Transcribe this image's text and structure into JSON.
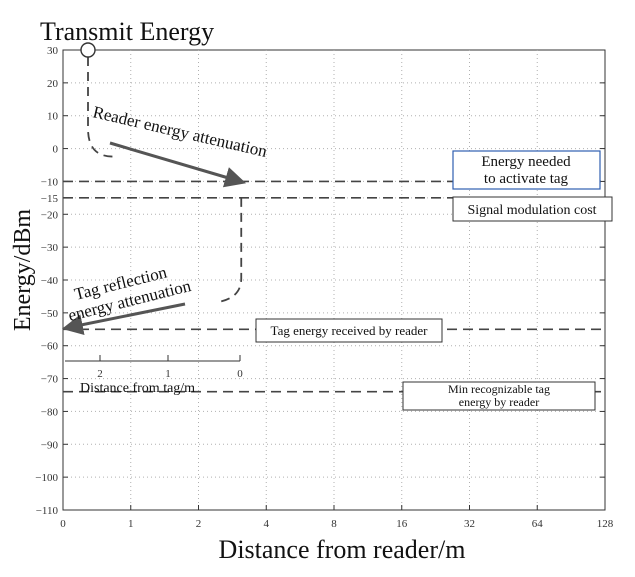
{
  "chart_data": {
    "type": "line",
    "title": "Transmit Energy",
    "xlabel": "Distance from reader/m",
    "ylabel": "Energy/dBm",
    "x_scale": "log2",
    "x_ticks": [
      "0",
      "1",
      "2",
      "4",
      "8",
      "16",
      "32",
      "64",
      "128"
    ],
    "y_ticks": [
      30,
      20,
      10,
      0,
      -10,
      -15,
      -20,
      -30,
      -40,
      -50,
      -60,
      -70,
      -80,
      -90,
      -100,
      -110
    ],
    "ylim": [
      -110,
      30
    ],
    "grid": true,
    "inset_axis": {
      "label": "Distance from tag/m",
      "ticks": [
        "2",
        "1",
        "0"
      ]
    },
    "series": [
      {
        "x": [
          "0",
          "0",
          "4",
          "4"
        ],
        "y": [
          30,
          0,
          -10,
          -45
        ]
      }
    ],
    "reference_levels": [
      {
        "label": "Energy needed to activate tag",
        "lines": [
          "Energy needed",
          "to activate tag"
        ],
        "y": -10
      },
      {
        "label": "Signal modulation cost",
        "y": -15
      },
      {
        "label": "Tag energy received by reader",
        "y": -55
      },
      {
        "label": "Min recognizable tag energy by reader",
        "lines": [
          "Min recognizable tag",
          "energy by reader"
        ],
        "y": -74
      }
    ],
    "annotations": [
      {
        "text": "Reader energy attenuation"
      },
      {
        "lines": [
          "Tag reflection",
          "energy attenuation"
        ]
      }
    ],
    "colors": {
      "axis": "#333333",
      "grid": "#b0b0b0",
      "dashed": "#444444",
      "arrow": "#555555",
      "highlight_box": "#2f5fb0"
    }
  }
}
